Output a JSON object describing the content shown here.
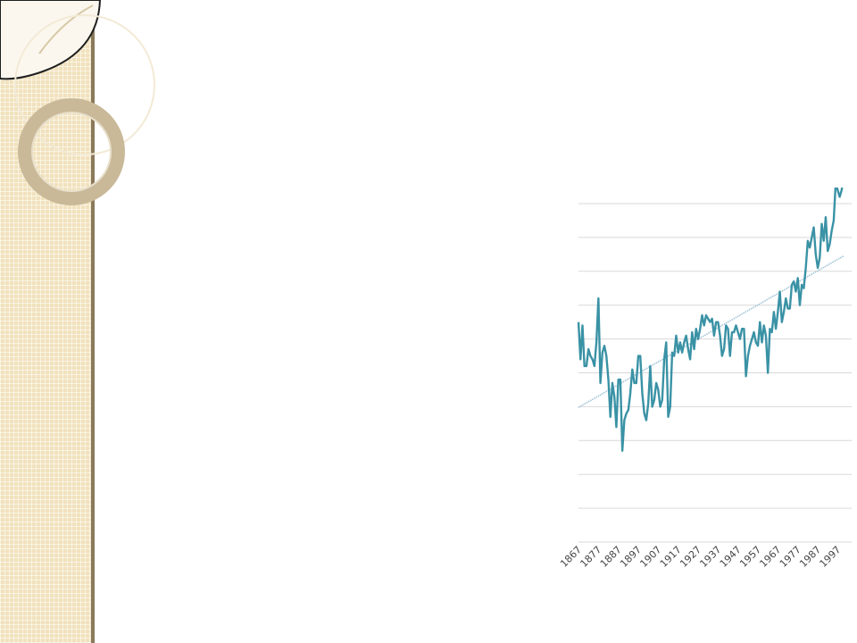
{
  "colors": {
    "series": "#3a92a5",
    "trend": "#9ec3d6",
    "grid": "#d9d9d9",
    "sidebar": "#f1e2bd"
  },
  "chart_data": {
    "type": "line",
    "title": "",
    "xlabel": "",
    "ylabel": "",
    "grid": true,
    "legend": "none",
    "x_start": 1867,
    "x_end": 2004,
    "x_ticks": [
      "1867",
      "1877",
      "1887",
      "1897",
      "1907",
      "1917",
      "1927",
      "1937",
      "1947",
      "1957",
      "1967",
      "1977",
      "1987",
      "1997"
    ],
    "ylim": [
      -1.0,
      0.0
    ],
    "gridlines": [
      0,
      -0.1,
      -0.2,
      -0.3,
      -0.4,
      -0.5,
      -0.6,
      -0.7,
      -0.8,
      -0.9,
      -1.0
    ],
    "series": [
      {
        "values": [
          -0.35,
          -0.46,
          -0.36,
          -0.48,
          -0.48,
          -0.43,
          -0.45,
          -0.46,
          -0.48,
          -0.41,
          -0.28,
          -0.53,
          -0.44,
          -0.42,
          -0.45,
          -0.52,
          -0.63,
          -0.53,
          -0.57,
          -0.66,
          -0.52,
          -0.52,
          -0.73,
          -0.64,
          -0.62,
          -0.61,
          -0.56,
          -0.49,
          -0.53,
          -0.53,
          -0.45,
          -0.45,
          -0.56,
          -0.62,
          -0.64,
          -0.59,
          -0.48,
          -0.6,
          -0.58,
          -0.53,
          -0.55,
          -0.6,
          -0.58,
          -0.46,
          -0.41,
          -0.63,
          -0.6,
          -0.44,
          -0.45,
          -0.39,
          -0.44,
          -0.41,
          -0.44,
          -0.41,
          -0.39,
          -0.43,
          -0.46,
          -0.38,
          -0.43,
          -0.37,
          -0.4,
          -0.37,
          -0.33,
          -0.36,
          -0.33,
          -0.34,
          -0.35,
          -0.34,
          -0.39,
          -0.35,
          -0.35,
          -0.39,
          -0.45,
          -0.43,
          -0.36,
          -0.37,
          -0.45,
          -0.38,
          -0.38,
          -0.36,
          -0.38,
          -0.4,
          -0.37,
          -0.37,
          -0.51,
          -0.45,
          -0.42,
          -0.4,
          -0.38,
          -0.41,
          -0.42,
          -0.35,
          -0.41,
          -0.36,
          -0.39,
          -0.5,
          -0.37,
          -0.38,
          -0.32,
          -0.37,
          -0.32,
          -0.26,
          -0.35,
          -0.32,
          -0.28,
          -0.31,
          -0.31,
          -0.24,
          -0.23,
          -0.26,
          -0.22,
          -0.3,
          -0.24,
          -0.25,
          -0.19,
          -0.11,
          -0.13,
          -0.1,
          -0.07,
          -0.15,
          -0.19,
          -0.16,
          -0.06,
          -0.11,
          -0.04,
          -0.14,
          -0.12,
          -0.08,
          -0.05,
          0.06,
          0.04,
          0.02,
          0.04,
          0.08
        ]
      }
    ]
  }
}
